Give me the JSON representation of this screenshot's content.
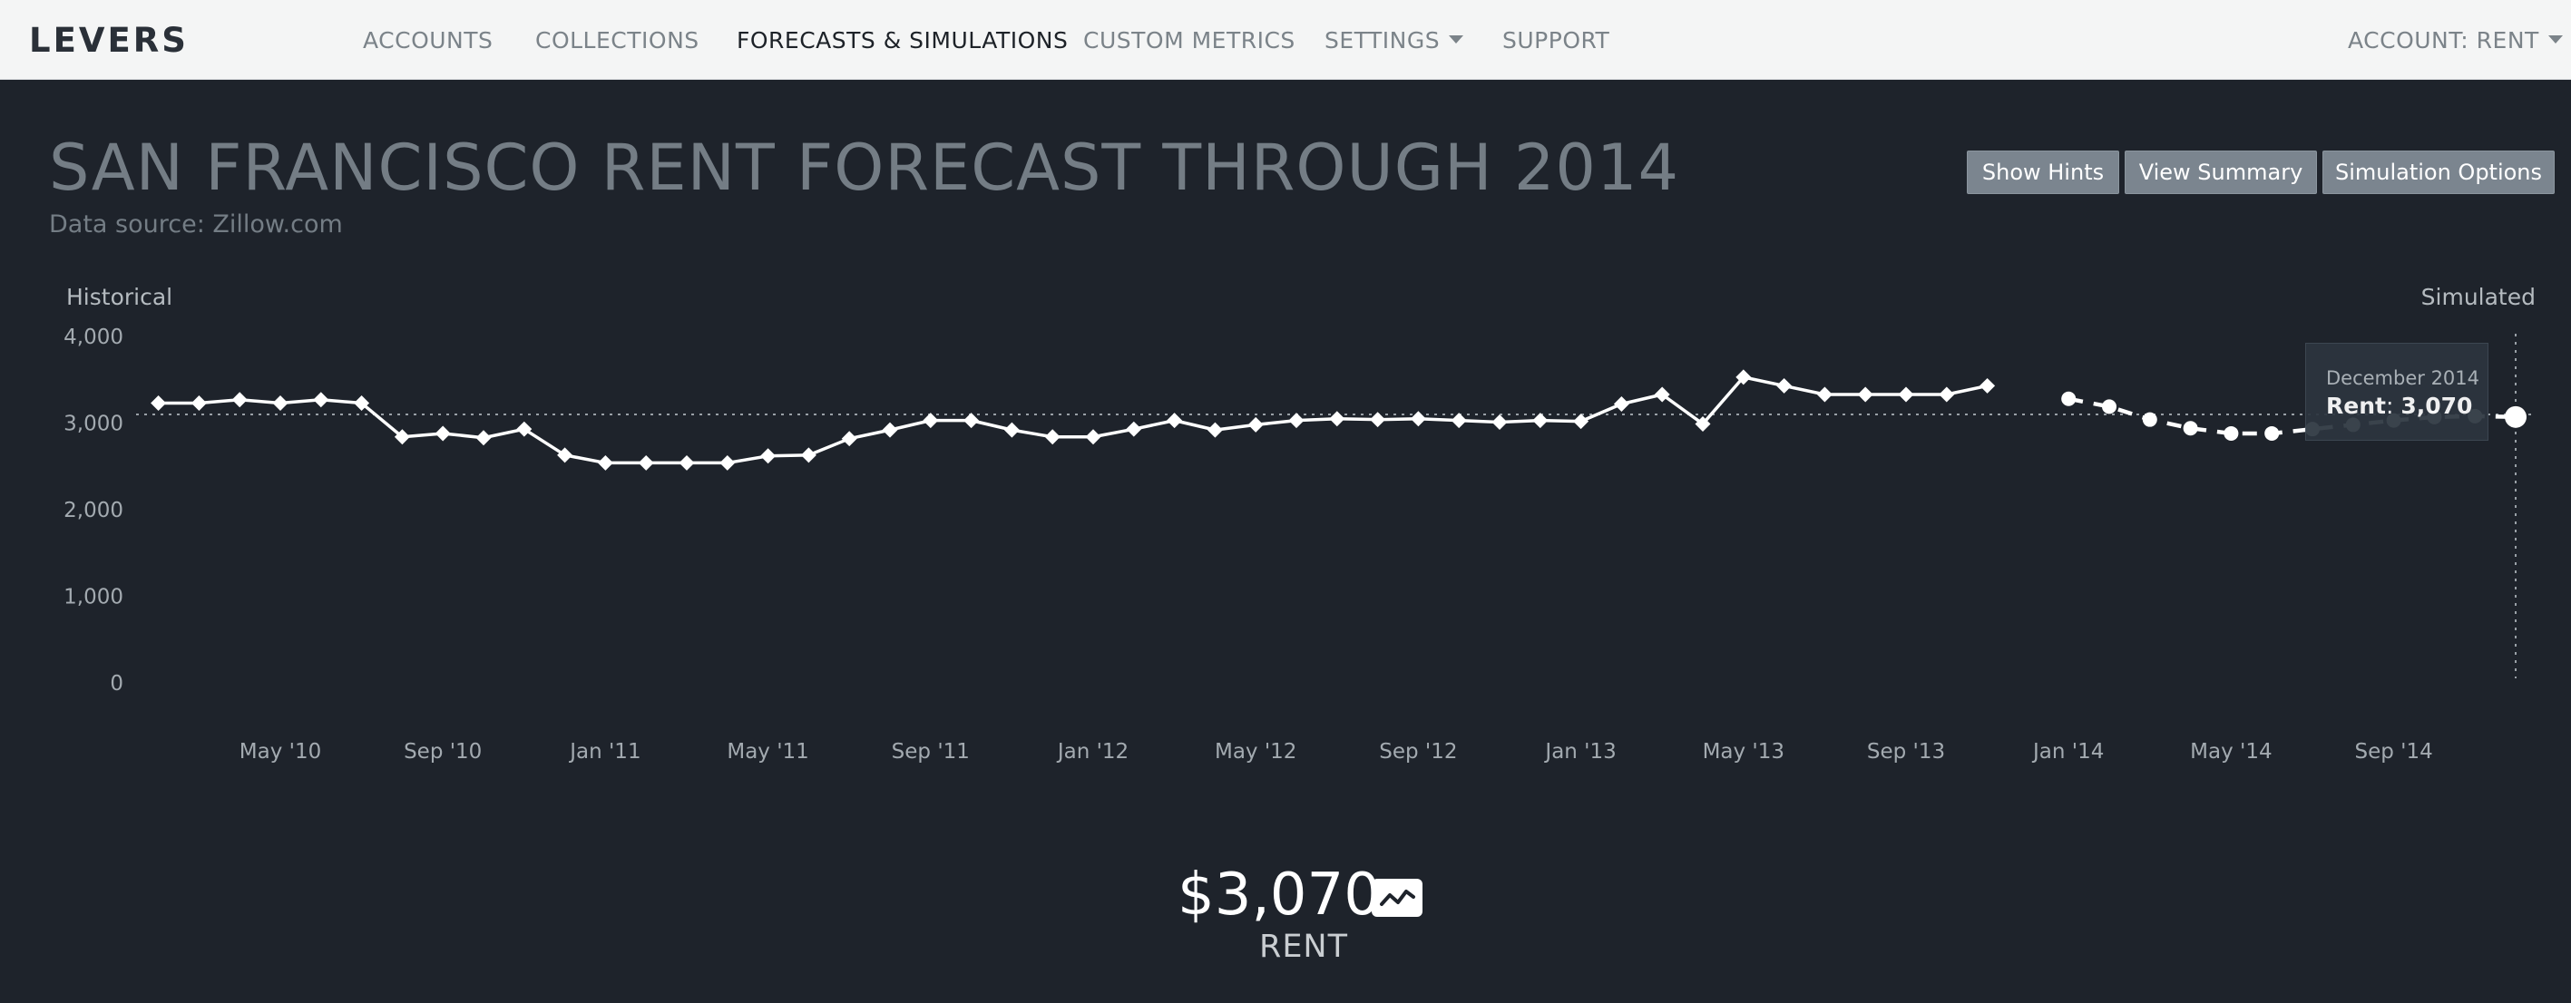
{
  "nav": {
    "brand": "LEVERS",
    "items": [
      "ACCOUNTS",
      "COLLECTIONS",
      "FORECASTS & SIMULATIONS",
      "CUSTOM METRICS",
      "SETTINGS",
      "SUPPORT"
    ],
    "active": "FORECASTS & SIMULATIONS",
    "account_label": "ACCOUNT: RENT"
  },
  "page": {
    "title": "SAN FRANCISCO RENT FORECAST THROUGH 2014",
    "subtitle": "Data source: Zillow.com"
  },
  "buttons": {
    "show_hints": "Show Hints",
    "view_summary": "View Summary",
    "simulation_options": "Simulation Options"
  },
  "colors": {
    "background": "#1e232b",
    "navbar": "#f4f5f5",
    "line": "#ffffff",
    "button": "#7b858f"
  },
  "chart_data": {
    "type": "line",
    "title": "SAN FRANCISCO RENT FORECAST THROUGH 2014",
    "section_labels": {
      "left": "Historical",
      "right": "Simulated"
    },
    "ylim": [
      0,
      4000
    ],
    "y_ticks": [
      "4,000",
      "3,000",
      "2,000",
      "1,000",
      "0"
    ],
    "x_ticks": [
      "May '10",
      "Sep '10",
      "Jan '11",
      "May '11",
      "Sep '11",
      "Jan '12",
      "May '12",
      "Sep '12",
      "Jan '13",
      "May '13",
      "Sep '13",
      "Jan '14",
      "May '14",
      "Sep '14"
    ],
    "reference_line": 3100,
    "grid": false,
    "series": [
      {
        "name": "Historical",
        "style": "solid",
        "x": [
          "2010-02",
          "2010-03",
          "2010-04",
          "2010-05",
          "2010-06",
          "2010-07",
          "2010-08",
          "2010-09",
          "2010-10",
          "2010-11",
          "2010-12",
          "2011-01",
          "2011-02",
          "2011-03",
          "2011-04",
          "2011-05",
          "2011-06",
          "2011-07",
          "2011-08",
          "2011-09",
          "2011-10",
          "2011-11",
          "2011-12",
          "2012-01",
          "2012-02",
          "2012-03",
          "2012-04",
          "2012-05",
          "2012-06",
          "2012-07",
          "2012-08",
          "2012-09",
          "2012-10",
          "2012-11",
          "2012-12",
          "2013-01",
          "2013-02",
          "2013-03",
          "2013-04",
          "2013-05",
          "2013-06",
          "2013-07",
          "2013-08",
          "2013-09",
          "2013-10",
          "2013-11"
        ],
        "values": [
          3230,
          3230,
          3270,
          3230,
          3270,
          3230,
          2840,
          2880,
          2830,
          2930,
          2630,
          2540,
          2540,
          2540,
          2540,
          2620,
          2630,
          2820,
          2920,
          3030,
          3030,
          2920,
          2840,
          2840,
          2930,
          3030,
          2920,
          2980,
          3030,
          3050,
          3040,
          3050,
          3030,
          3010,
          3030,
          3020,
          3220,
          3330,
          2990,
          3530,
          3430,
          3330,
          3330,
          3330,
          3330,
          3430
        ]
      },
      {
        "name": "Rent",
        "style": "dashed",
        "x": [
          "2014-01",
          "2014-02",
          "2014-03",
          "2014-04",
          "2014-05",
          "2014-06",
          "2014-07",
          "2014-08",
          "2014-09",
          "2014-10",
          "2014-11",
          "2014-12"
        ],
        "values": [
          3280,
          3190,
          3040,
          2940,
          2880,
          2880,
          2930,
          2980,
          3030,
          3070,
          3080,
          3070
        ]
      }
    ],
    "tooltip": {
      "date": "December 2014",
      "series": "Rent",
      "value": "3,070"
    }
  },
  "summary": {
    "value": "$3,070",
    "label": "RENT",
    "icon": "line-chart-icon"
  }
}
